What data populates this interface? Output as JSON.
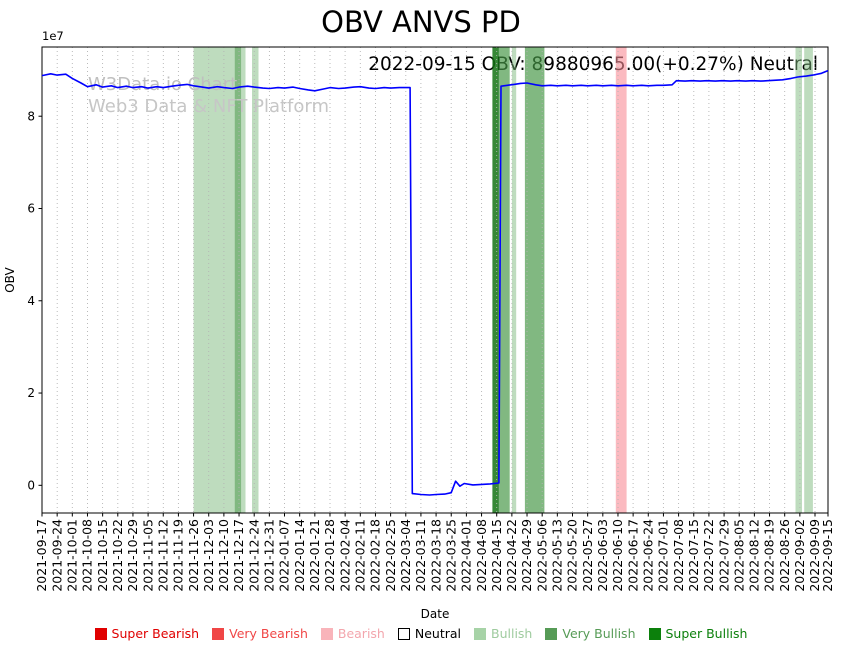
{
  "chart_data": {
    "type": "line",
    "title": "OBV ANVS PD",
    "annotation": "2022-09-15 OBV: 89880965.00(+0.27%) Neutral",
    "watermark": [
      "W3Data.io Chart",
      "Web3 Data & NFT Platform"
    ],
    "xlabel": "Date",
    "ylabel": "OBV",
    "y_offset_text": "1e7",
    "ylim": [
      -6000000,
      95000000
    ],
    "yticks": [
      0,
      20000000,
      40000000,
      60000000,
      80000000
    ],
    "ytick_labels": [
      "0",
      "2",
      "4",
      "6",
      "8"
    ],
    "grid": "vertical-dotted",
    "legend_position": "bottom-center",
    "latest": {
      "date": "2022-09-15",
      "obv": 89880965.0,
      "change_pct": "+0.27%",
      "signal": "Neutral"
    },
    "x_tick_labels": [
      "2021-09-17",
      "2021-09-24",
      "2021-10-01",
      "2021-10-08",
      "2021-10-15",
      "2021-10-22",
      "2021-10-29",
      "2021-11-05",
      "2021-11-12",
      "2021-11-19",
      "2021-11-26",
      "2021-12-03",
      "2021-12-10",
      "2021-12-17",
      "2021-12-24",
      "2021-12-31",
      "2022-01-07",
      "2022-01-14",
      "2022-01-21",
      "2022-01-28",
      "2022-02-04",
      "2022-02-11",
      "2022-02-18",
      "2022-02-25",
      "2022-03-04",
      "2022-03-11",
      "2022-03-18",
      "2022-03-25",
      "2022-04-01",
      "2022-04-08",
      "2022-04-15",
      "2022-04-22",
      "2022-04-29",
      "2022-05-06",
      "2022-05-13",
      "2022-05-20",
      "2022-05-27",
      "2022-06-03",
      "2022-06-10",
      "2022-06-17",
      "2022-06-24",
      "2022-07-01",
      "2022-07-08",
      "2022-07-15",
      "2022-07-22",
      "2022-07-29",
      "2022-08-05",
      "2022-08-12",
      "2022-08-19",
      "2022-08-26",
      "2022-09-02",
      "2022-09-09",
      "2022-09-15"
    ],
    "series": [
      {
        "name": "OBV",
        "color": "#0000ff",
        "points": [
          [
            "2021-09-17",
            88800000
          ],
          [
            "2021-09-21",
            89200000
          ],
          [
            "2021-09-24",
            88900000
          ],
          [
            "2021-09-28",
            89100000
          ],
          [
            "2021-10-01",
            88200000
          ],
          [
            "2021-10-05",
            87200000
          ],
          [
            "2021-10-08",
            86400000
          ],
          [
            "2021-10-12",
            86800000
          ],
          [
            "2021-10-15",
            86300000
          ],
          [
            "2021-10-19",
            86600000
          ],
          [
            "2021-10-22",
            86200000
          ],
          [
            "2021-10-26",
            86500000
          ],
          [
            "2021-10-29",
            86200000
          ],
          [
            "2021-11-02",
            86400000
          ],
          [
            "2021-11-05",
            86100000
          ],
          [
            "2021-11-09",
            86400000
          ],
          [
            "2021-11-12",
            86200000
          ],
          [
            "2021-11-16",
            86500000
          ],
          [
            "2021-11-19",
            86700000
          ],
          [
            "2021-11-23",
            86900000
          ],
          [
            "2021-11-26",
            86600000
          ],
          [
            "2021-11-30",
            86300000
          ],
          [
            "2021-12-03",
            86100000
          ],
          [
            "2021-12-07",
            86400000
          ],
          [
            "2021-12-10",
            86200000
          ],
          [
            "2021-12-14",
            86000000
          ],
          [
            "2021-12-17",
            86300000
          ],
          [
            "2021-12-21",
            86500000
          ],
          [
            "2021-12-24",
            86300000
          ],
          [
            "2021-12-28",
            86100000
          ],
          [
            "2021-12-31",
            86000000
          ],
          [
            "2022-01-04",
            86200000
          ],
          [
            "2022-01-07",
            86100000
          ],
          [
            "2022-01-11",
            86300000
          ],
          [
            "2022-01-14",
            86000000
          ],
          [
            "2022-01-18",
            85700000
          ],
          [
            "2022-01-21",
            85500000
          ],
          [
            "2022-01-25",
            85900000
          ],
          [
            "2022-01-28",
            86200000
          ],
          [
            "2022-02-01",
            86000000
          ],
          [
            "2022-02-04",
            86100000
          ],
          [
            "2022-02-08",
            86300000
          ],
          [
            "2022-02-11",
            86400000
          ],
          [
            "2022-02-15",
            86100000
          ],
          [
            "2022-02-18",
            86000000
          ],
          [
            "2022-02-22",
            86200000
          ],
          [
            "2022-02-25",
            86100000
          ],
          [
            "2022-03-01",
            86200000
          ],
          [
            "2022-03-06",
            86200000
          ],
          [
            "2022-03-07",
            -1800000
          ],
          [
            "2022-03-11",
            -2000000
          ],
          [
            "2022-03-15",
            -2100000
          ],
          [
            "2022-03-18",
            -2000000
          ],
          [
            "2022-03-22",
            -1900000
          ],
          [
            "2022-03-25",
            -1600000
          ],
          [
            "2022-03-27",
            900000
          ],
          [
            "2022-03-29",
            -200000
          ],
          [
            "2022-03-31",
            400000
          ],
          [
            "2022-04-04",
            100000
          ],
          [
            "2022-04-08",
            200000
          ],
          [
            "2022-04-12",
            300000
          ],
          [
            "2022-04-16",
            500000
          ],
          [
            "2022-04-17",
            86500000
          ],
          [
            "2022-04-20",
            86700000
          ],
          [
            "2022-04-23",
            86900000
          ],
          [
            "2022-04-26",
            87100000
          ],
          [
            "2022-04-29",
            87200000
          ],
          [
            "2022-05-03",
            86800000
          ],
          [
            "2022-05-06",
            86600000
          ],
          [
            "2022-05-10",
            86700000
          ],
          [
            "2022-05-13",
            86600000
          ],
          [
            "2022-05-17",
            86700000
          ],
          [
            "2022-05-20",
            86600000
          ],
          [
            "2022-05-24",
            86700000
          ],
          [
            "2022-05-27",
            86600000
          ],
          [
            "2022-05-31",
            86700000
          ],
          [
            "2022-06-03",
            86600000
          ],
          [
            "2022-06-07",
            86700000
          ],
          [
            "2022-06-10",
            86600000
          ],
          [
            "2022-06-14",
            86700000
          ],
          [
            "2022-06-17",
            86600000
          ],
          [
            "2022-06-21",
            86700000
          ],
          [
            "2022-06-24",
            86600000
          ],
          [
            "2022-06-28",
            86700000
          ],
          [
            "2022-07-01",
            86700000
          ],
          [
            "2022-07-05",
            86800000
          ],
          [
            "2022-07-07",
            87700000
          ],
          [
            "2022-07-11",
            87600000
          ],
          [
            "2022-07-14",
            87700000
          ],
          [
            "2022-07-18",
            87600000
          ],
          [
            "2022-07-21",
            87700000
          ],
          [
            "2022-07-25",
            87600000
          ],
          [
            "2022-07-28",
            87700000
          ],
          [
            "2022-08-01",
            87600000
          ],
          [
            "2022-08-04",
            87700000
          ],
          [
            "2022-08-08",
            87600000
          ],
          [
            "2022-08-11",
            87700000
          ],
          [
            "2022-08-15",
            87600000
          ],
          [
            "2022-08-18",
            87700000
          ],
          [
            "2022-08-22",
            87800000
          ],
          [
            "2022-08-25",
            87900000
          ],
          [
            "2022-08-29",
            88200000
          ],
          [
            "2022-09-01",
            88500000
          ],
          [
            "2022-09-05",
            88700000
          ],
          [
            "2022-09-08",
            88900000
          ],
          [
            "2022-09-12",
            89300000
          ],
          [
            "2022-09-15",
            89880965
          ]
        ]
      }
    ],
    "bands": [
      {
        "start": "2021-11-26",
        "end": "2021-12-15",
        "signal": "Bullish"
      },
      {
        "start": "2021-12-15",
        "end": "2021-12-18",
        "signal": "Very Bullish"
      },
      {
        "start": "2021-12-18",
        "end": "2021-12-20",
        "signal": "Bullish"
      },
      {
        "start": "2021-12-23",
        "end": "2021-12-26",
        "signal": "Bullish"
      },
      {
        "start": "2022-04-13",
        "end": "2022-04-16",
        "signal": "Super Bullish"
      },
      {
        "start": "2022-04-16",
        "end": "2022-04-21",
        "signal": "Very Bullish"
      },
      {
        "start": "2022-04-22",
        "end": "2022-04-24",
        "signal": "Bullish"
      },
      {
        "start": "2022-04-28",
        "end": "2022-05-07",
        "signal": "Very Bullish"
      },
      {
        "start": "2022-06-09",
        "end": "2022-06-14",
        "signal": "Bearish"
      },
      {
        "start": "2022-08-31",
        "end": "2022-09-03",
        "signal": "Bullish"
      },
      {
        "start": "2022-09-04",
        "end": "2022-09-08",
        "signal": "Bullish"
      }
    ],
    "band_colors": {
      "Super Bearish": "rgba(225,0,0,0.85)",
      "Very Bearish": "rgba(240,70,70,0.7)",
      "Bearish": "rgba(248,140,150,0.6)",
      "Bullish": "rgba(125,185,125,0.5)",
      "Very Bullish": "rgba(70,150,70,0.68)",
      "Super Bullish": "rgba(20,115,20,0.85)"
    },
    "legend": [
      {
        "label": "Super Bearish",
        "swatch": "#e00000",
        "border": "#e00000",
        "text_color": "#e00000"
      },
      {
        "label": "Very Bearish",
        "swatch": "#f04646",
        "border": "#f04646",
        "text_color": "#f04646"
      },
      {
        "label": "Bearish",
        "swatch": "#f9b4ba",
        "border": "#f9b4ba",
        "text_color": "#f3a6ad"
      },
      {
        "label": "Neutral",
        "swatch": "#ffffff",
        "border": "#000000",
        "text_color": "#000000"
      },
      {
        "label": "Bullish",
        "swatch": "#a7d3a7",
        "border": "#a7d3a7",
        "text_color": "#9fcb9f"
      },
      {
        "label": "Very Bullish",
        "swatch": "#569b56",
        "border": "#569b56",
        "text_color": "#569b56"
      },
      {
        "label": "Super Bullish",
        "swatch": "#0c800c",
        "border": "#0c800c",
        "text_color": "#0c800c"
      }
    ]
  }
}
